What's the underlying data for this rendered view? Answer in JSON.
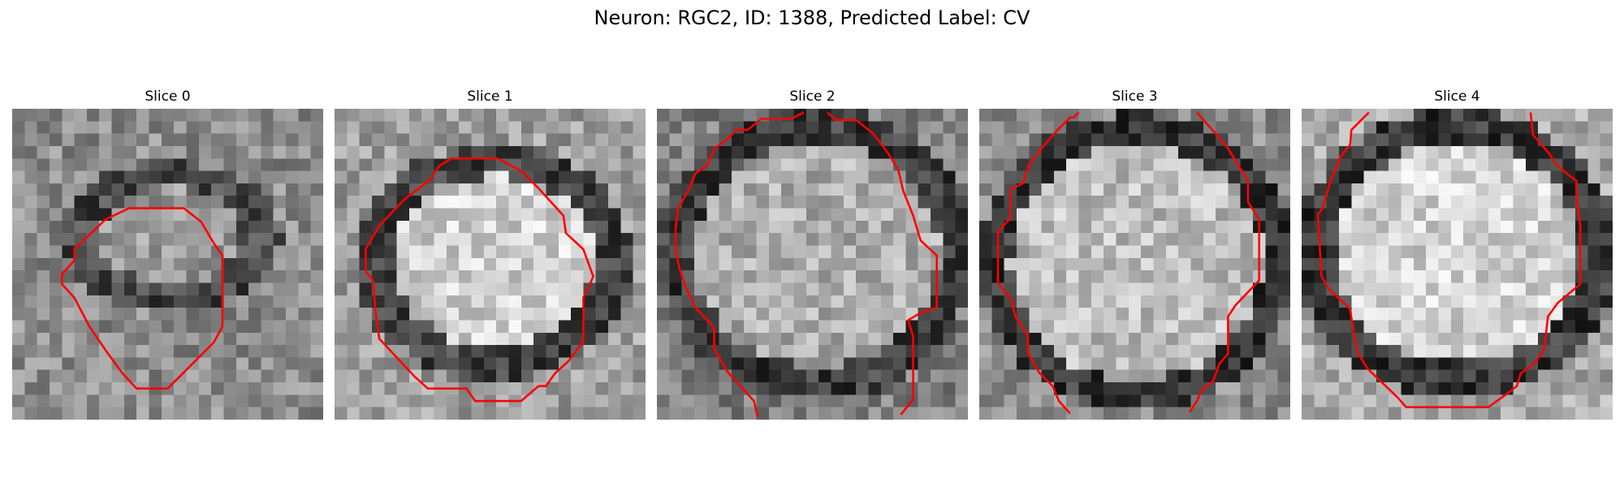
{
  "figure": {
    "title": "Neuron: RGC2, ID: 1388, Predicted Label: CV",
    "grid_size": 25,
    "contour_color": "#ff0000",
    "slices": [
      {
        "title": "Slice 0",
        "center": [
          12.8,
          10.3
        ],
        "rx": 7.2,
        "ry": 5.0,
        "ring_width": 1.8,
        "inside": 0.6,
        "ring": 0.28,
        "outside": 0.55,
        "seed": 11,
        "contour": [
          [
            13.8,
            8.0
          ],
          [
            15.2,
            9.1
          ],
          [
            16.2,
            10.8
          ],
          [
            16.9,
            11.8
          ],
          [
            16.9,
            17.5
          ],
          [
            16.2,
            18.8
          ],
          [
            15.6,
            19.4
          ],
          [
            12.5,
            22.5
          ],
          [
            10.0,
            22.5
          ],
          [
            8.8,
            21.2
          ],
          [
            7.5,
            19.4
          ],
          [
            6.2,
            17.5
          ],
          [
            5.0,
            15.2
          ],
          [
            4.0,
            14.1
          ],
          [
            4.0,
            13.3
          ],
          [
            5.0,
            12.2
          ],
          [
            5.0,
            11.3
          ],
          [
            7.5,
            8.9
          ],
          [
            9.4,
            8.0
          ]
        ]
      },
      {
        "title": "Slice 1",
        "center": [
          12.8,
          12.3
        ],
        "rx": 9.6,
        "ry": 8.2,
        "ring_width": 2.2,
        "inside": 0.82,
        "ring": 0.26,
        "outside": 0.62,
        "seed": 23,
        "contour": [
          [
            9.4,
            4.0
          ],
          [
            13.1,
            4.0
          ],
          [
            15.0,
            5.0
          ],
          [
            16.4,
            6.4
          ],
          [
            18.4,
            8.6
          ],
          [
            18.6,
            10.0
          ],
          [
            20.0,
            11.3
          ],
          [
            20.8,
            13.5
          ],
          [
            20.0,
            15.2
          ],
          [
            20.0,
            18.7
          ],
          [
            18.8,
            20.3
          ],
          [
            17.7,
            21.3
          ],
          [
            17.0,
            22.3
          ],
          [
            16.4,
            22.3
          ],
          [
            15.0,
            23.5
          ],
          [
            11.3,
            23.5
          ],
          [
            10.6,
            22.5
          ],
          [
            7.5,
            22.5
          ],
          [
            6.4,
            21.5
          ],
          [
            5.0,
            20.0
          ],
          [
            3.6,
            18.5
          ],
          [
            3.3,
            16.4
          ],
          [
            3.1,
            13.8
          ],
          [
            2.5,
            13.1
          ],
          [
            2.5,
            11.3
          ],
          [
            3.6,
            9.4
          ],
          [
            5.6,
            7.3
          ],
          [
            7.7,
            5.7
          ],
          [
            8.4,
            4.6
          ]
        ]
      },
      {
        "title": "Slice 2",
        "center": [
          12.8,
          11.7
        ],
        "rx": 11.3,
        "ry": 10.4,
        "ring_width": 2.3,
        "inside": 0.68,
        "ring": 0.24,
        "outside": 0.5,
        "seed": 37,
        "contour_segments": [
          [
            [
              11.8,
              0.3
            ],
            [
              10.8,
              0.8
            ],
            [
              8.4,
              0.8
            ],
            [
              7.3,
              1.7
            ],
            [
              6.4,
              1.7
            ],
            [
              5.7,
              2.4
            ],
            [
              4.6,
              3.2
            ],
            [
              4.1,
              4.5
            ],
            [
              3.1,
              5.2
            ],
            [
              2.5,
              6.6
            ],
            [
              1.7,
              8.0
            ],
            [
              1.5,
              9.6
            ],
            [
              1.5,
              11.3
            ],
            [
              1.8,
              12.8
            ],
            [
              2.3,
              14.3
            ],
            [
              3.1,
              16.0
            ],
            [
              4.6,
              17.6
            ],
            [
              4.6,
              19.3
            ],
            [
              5.7,
              21.2
            ],
            [
              7.8,
              23.5
            ],
            [
              8.1,
              24.8
            ]
          ],
          [
            [
              13.7,
              0.3
            ],
            [
              14.4,
              0.9
            ],
            [
              16.0,
              0.9
            ],
            [
              17.4,
              2.0
            ],
            [
              18.6,
              3.6
            ],
            [
              19.4,
              4.9
            ],
            [
              19.8,
              6.6
            ],
            [
              20.6,
              8.6
            ],
            [
              21.2,
              10.6
            ],
            [
              22.5,
              11.8
            ],
            [
              22.5,
              16.0
            ],
            [
              21.2,
              16.4
            ],
            [
              20.2,
              17.0
            ],
            [
              20.6,
              18.3
            ],
            [
              20.6,
              20.3
            ],
            [
              20.6,
              23.4
            ],
            [
              19.6,
              24.6
            ]
          ]
        ]
      },
      {
        "title": "Slice 3",
        "center": [
          12.6,
          12.3
        ],
        "rx": 11.4,
        "ry": 10.7,
        "ring_width": 2.0,
        "inside": 0.74,
        "ring": 0.22,
        "outside": 0.55,
        "seed": 53,
        "contour_segments": [
          [
            [
              8.0,
              0.3
            ],
            [
              7.6,
              0.7
            ],
            [
              7.3,
              0.7
            ],
            [
              6.2,
              1.8
            ],
            [
              5.0,
              3.2
            ],
            [
              4.0,
              4.5
            ],
            [
              3.5,
              6.0
            ],
            [
              2.5,
              6.5
            ],
            [
              2.5,
              8.8
            ],
            [
              1.5,
              9.9
            ],
            [
              1.5,
              14.0
            ],
            [
              2.6,
              15.4
            ],
            [
              2.9,
              16.7
            ],
            [
              3.9,
              18.2
            ],
            [
              3.9,
              19.6
            ],
            [
              4.8,
              21.2
            ],
            [
              5.9,
              22.3
            ],
            [
              6.4,
              23.5
            ],
            [
              7.3,
              24.5
            ]
          ],
          [
            [
              17.5,
              0.3
            ],
            [
              19.0,
              2.0
            ],
            [
              20.0,
              3.2
            ],
            [
              20.8,
              4.5
            ],
            [
              21.6,
              5.8
            ],
            [
              21.6,
              7.5
            ],
            [
              22.5,
              8.9
            ],
            [
              22.5,
              13.8
            ],
            [
              20.6,
              15.8
            ],
            [
              20.0,
              16.7
            ],
            [
              20.0,
              17.1
            ],
            [
              20.0,
              19.7
            ],
            [
              19.3,
              20.5
            ],
            [
              18.8,
              21.9
            ],
            [
              17.9,
              22.6
            ],
            [
              17.5,
              23.5
            ],
            [
              16.9,
              24.4
            ]
          ]
        ]
      },
      {
        "title": "Slice 4",
        "center": [
          12.5,
          11.6
        ],
        "rx": 11.4,
        "ry": 10.2,
        "ring_width": 2.2,
        "inside": 0.83,
        "ring": 0.22,
        "outside": 0.66,
        "seed": 71,
        "contour_segments": [
          [
            [
              5.4,
              0.3
            ],
            [
              4.0,
              1.7
            ],
            [
              3.9,
              2.9
            ],
            [
              3.1,
              3.9
            ],
            [
              2.8,
              4.7
            ],
            [
              2.4,
              5.6
            ],
            [
              2.0,
              6.9
            ],
            [
              1.7,
              8.0
            ],
            [
              1.3,
              8.5
            ],
            [
              1.6,
              13.5
            ],
            [
              2.2,
              14.5
            ],
            [
              3.9,
              16.1
            ],
            [
              4.1,
              17.5
            ],
            [
              4.4,
              19.2
            ],
            [
              4.5,
              19.6
            ],
            [
              5.3,
              20.9
            ],
            [
              7.7,
              23.2
            ],
            [
              8.4,
              24.0
            ],
            [
              15.0,
              24.0
            ],
            [
              16.4,
              23.0
            ],
            [
              17.3,
              22.3
            ],
            [
              17.6,
              21.3
            ],
            [
              18.8,
              20.4
            ],
            [
              19.5,
              19.3
            ],
            [
              19.8,
              16.7
            ],
            [
              20.6,
              15.6
            ],
            [
              22.4,
              14.1
            ],
            [
              22.4,
              9.4
            ],
            [
              22.1,
              7.2
            ],
            [
              22.1,
              5.8
            ],
            [
              21.4,
              5.3
            ],
            [
              20.4,
              4.4
            ],
            [
              19.9,
              3.6
            ],
            [
              18.6,
              2.1
            ],
            [
              18.4,
              0.3
            ]
          ]
        ]
      }
    ]
  }
}
